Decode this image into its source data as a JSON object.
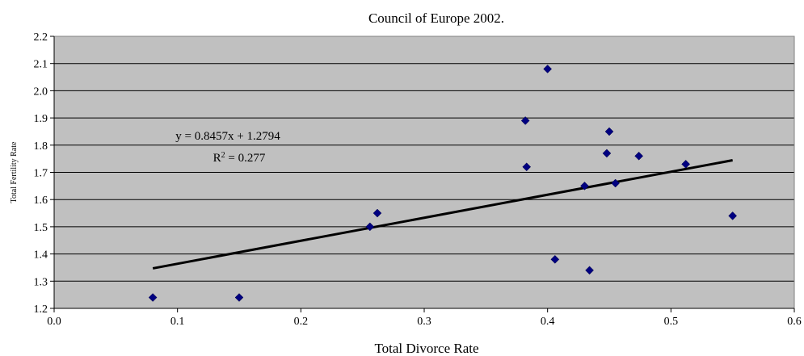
{
  "chart_data": {
    "type": "scatter",
    "title": "Council of Europe 2002.",
    "xlabel": "Total Divorce Rate",
    "ylabel": "Total Fertility Rate",
    "xlim": [
      0.0,
      0.6
    ],
    "ylim": [
      1.2,
      2.2
    ],
    "xticks": [
      "0.0",
      "0.1",
      "0.2",
      "0.3",
      "0.4",
      "0.5",
      "0.6"
    ],
    "yticks": [
      "1.2",
      "1.3",
      "1.4",
      "1.5",
      "1.6",
      "1.7",
      "1.8",
      "1.9",
      "2.0",
      "2.1",
      "2.2"
    ],
    "grid": true,
    "plot_background": "#c0c0c0",
    "marker_color": "#000080",
    "points": [
      {
        "x": 0.08,
        "y": 1.24
      },
      {
        "x": 0.15,
        "y": 1.24
      },
      {
        "x": 0.256,
        "y": 1.5
      },
      {
        "x": 0.262,
        "y": 1.55
      },
      {
        "x": 0.382,
        "y": 1.89
      },
      {
        "x": 0.383,
        "y": 1.72
      },
      {
        "x": 0.4,
        "y": 2.08
      },
      {
        "x": 0.406,
        "y": 1.38
      },
      {
        "x": 0.43,
        "y": 1.65
      },
      {
        "x": 0.434,
        "y": 1.34
      },
      {
        "x": 0.448,
        "y": 1.77
      },
      {
        "x": 0.45,
        "y": 1.85
      },
      {
        "x": 0.455,
        "y": 1.66
      },
      {
        "x": 0.474,
        "y": 1.76
      },
      {
        "x": 0.512,
        "y": 1.73
      },
      {
        "x": 0.55,
        "y": 1.54
      }
    ],
    "trendline": {
      "type": "linear",
      "slope": 0.8457,
      "intercept": 1.2794,
      "x_range": [
        0.08,
        0.55
      ],
      "equation_text": "y = 0.8457x + 1.2794",
      "r2_prefix": "R",
      "r2_sup": "2",
      "r2_suffix": " = 0.277"
    }
  }
}
